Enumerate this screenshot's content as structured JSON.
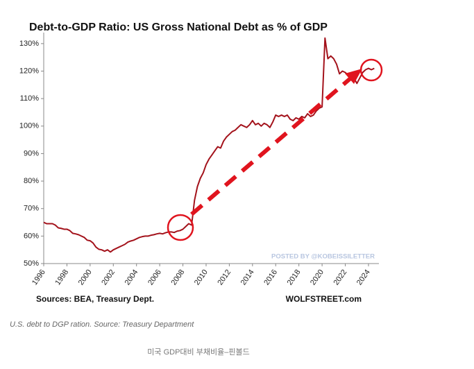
{
  "chart_data": {
    "type": "line",
    "title": "Debt-to-GDP Ratio: US Gross National Debt as % of GDP",
    "source": "Sources: BEA, Treasury Dept.",
    "brand": "WOLFSTREET.com",
    "watermark": "POSTED BY @KOBEISSILETTER",
    "caption": "U.S. debt to DGP ration. Source: Treasury Department",
    "footer": "미국 GDP대비 부채비율–핀볼드",
    "color": "#a3121b",
    "grid": false,
    "xlim": [
      1996,
      2024.9
    ],
    "xticks": [
      1996,
      1998,
      2000,
      2002,
      2004,
      2006,
      2008,
      2010,
      2012,
      2014,
      2016,
      2018,
      2020,
      2022,
      2024
    ],
    "ylim": [
      50,
      134
    ],
    "yticks": [
      {
        "value": 50,
        "label": "50%"
      },
      {
        "value": 60,
        "label": "60%"
      },
      {
        "value": 70,
        "label": "70%"
      },
      {
        "value": 80,
        "label": "80%"
      },
      {
        "value": 90,
        "label": "90%"
      },
      {
        "value": 100,
        "label": "100%"
      },
      {
        "value": 110,
        "label": "110%"
      },
      {
        "value": 120,
        "label": "120%"
      },
      {
        "value": 130,
        "label": "130%"
      }
    ],
    "x": [
      1996,
      1996.25,
      1996.5,
      1996.75,
      1997,
      1997.25,
      1997.5,
      1997.75,
      1998,
      1998.25,
      1998.5,
      1998.75,
      1999,
      1999.25,
      1999.5,
      1999.75,
      2000,
      2000.25,
      2000.5,
      2000.75,
      2001,
      2001.25,
      2001.5,
      2001.75,
      2002,
      2002.25,
      2002.5,
      2002.75,
      2003,
      2003.25,
      2003.5,
      2003.75,
      2004,
      2004.25,
      2004.5,
      2004.75,
      2005,
      2005.25,
      2005.5,
      2005.75,
      2006,
      2006.25,
      2006.5,
      2006.75,
      2007,
      2007.25,
      2007.5,
      2007.75,
      2008,
      2008.25,
      2008.5,
      2008.75,
      2009,
      2009.25,
      2009.5,
      2009.75,
      2010,
      2010.25,
      2010.5,
      2010.75,
      2011,
      2011.25,
      2011.5,
      2011.75,
      2012,
      2012.25,
      2012.5,
      2012.75,
      2013,
      2013.25,
      2013.5,
      2013.75,
      2014,
      2014.25,
      2014.5,
      2014.75,
      2015,
      2015.25,
      2015.5,
      2015.75,
      2016,
      2016.25,
      2016.5,
      2016.75,
      2017,
      2017.25,
      2017.5,
      2017.75,
      2018,
      2018.25,
      2018.5,
      2018.75,
      2019,
      2019.25,
      2019.5,
      2019.75,
      2020,
      2020.25,
      2020.5,
      2020.75,
      2021,
      2021.25,
      2021.5,
      2021.75,
      2022,
      2022.25,
      2022.5,
      2022.75,
      2023,
      2023.25,
      2023.5,
      2023.75,
      2024,
      2024.25,
      2024.5
    ],
    "values": [
      65,
      64.5,
      64.5,
      64.5,
      64,
      63,
      62.8,
      62.5,
      62.5,
      62,
      61,
      60.8,
      60.5,
      60,
      59.5,
      58.5,
      58.3,
      57.5,
      56,
      55.2,
      55,
      54.5,
      55,
      54.2,
      55,
      55.5,
      56,
      56.5,
      57,
      57.8,
      58.2,
      58.5,
      59,
      59.5,
      59.8,
      60,
      60,
      60.3,
      60.5,
      60.8,
      61,
      60.8,
      61.2,
      61.5,
      61.5,
      61.3,
      61.8,
      62,
      62.5,
      63.5,
      64.5,
      64,
      73,
      78,
      81,
      83,
      86,
      88,
      89.5,
      91,
      92.5,
      92,
      94.5,
      96,
      97,
      98,
      98.5,
      99.5,
      100.5,
      100,
      99.5,
      100.5,
      102,
      100.5,
      101,
      100,
      101,
      100.5,
      99.5,
      101.5,
      104,
      103.5,
      104,
      103.5,
      104,
      102.5,
      102,
      103,
      102.5,
      103.5,
      103,
      104.5,
      103.5,
      104,
      105.5,
      106.5,
      107,
      132,
      124.5,
      125.5,
      124.5,
      122.5,
      119,
      120,
      119.5,
      118.5,
      118,
      117.5,
      115.5,
      117.5,
      119.5,
      120.5,
      121,
      120.5,
      121
    ]
  }
}
